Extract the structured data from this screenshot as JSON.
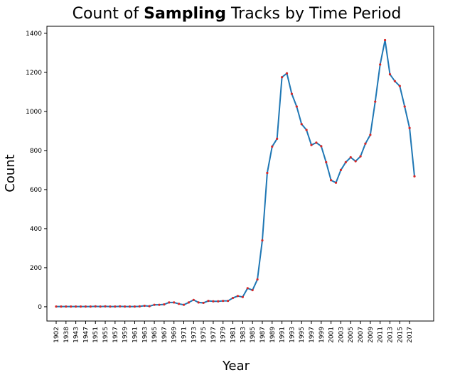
{
  "chart_data": {
    "type": "line",
    "title_parts": [
      "Count of ",
      "Sampling",
      " Tracks by Time Period"
    ],
    "x_label": "Year",
    "y_label": "Count",
    "categories": [
      "1902",
      null,
      "1938",
      null,
      "1943",
      null,
      "1947",
      null,
      "1951",
      null,
      "1955",
      null,
      "1957",
      null,
      "1959",
      null,
      "1961",
      null,
      "1963",
      null,
      "1965",
      null,
      "1967",
      null,
      "1969",
      null,
      "1971",
      null,
      "1973",
      null,
      "1975",
      null,
      "1977",
      null,
      "1979",
      null,
      "1981",
      null,
      "1983",
      null,
      "1985",
      null,
      "1987",
      null,
      "1989",
      null,
      "1991",
      null,
      "1993",
      null,
      "1995",
      null,
      "1997",
      null,
      "1999",
      null,
      "2001",
      null,
      "2003",
      null,
      "2005",
      null,
      "2007",
      null,
      "2009",
      null,
      "2011",
      null,
      "2013",
      null,
      "2015",
      null,
      "2017",
      null
    ],
    "series": [
      {
        "color": "#1f77b4",
        "marker_color": "#d62728",
        "values": [
          1,
          1,
          1,
          1,
          1,
          1,
          1,
          1,
          2,
          1,
          2,
          1,
          1,
          2,
          1,
          1,
          1,
          2,
          5,
          3,
          10,
          10,
          12,
          22,
          22,
          15,
          10,
          22,
          35,
          22,
          20,
          30,
          28,
          28,
          30,
          30,
          45,
          55,
          50,
          95,
          85,
          140,
          340,
          685,
          820,
          860,
          1175,
          1195,
          1090,
          1025,
          935,
          905,
          828,
          840,
          822,
          740,
          648,
          635,
          700,
          740,
          765,
          745,
          770,
          835,
          880,
          1050,
          1240,
          1365,
          1190,
          1155,
          1130,
          1025,
          915,
          668
        ]
      }
    ],
    "ylim": [
      -73,
      1436
    ],
    "yticks": [
      0,
      200,
      400,
      600,
      800,
      1000,
      1200,
      1400
    ]
  }
}
